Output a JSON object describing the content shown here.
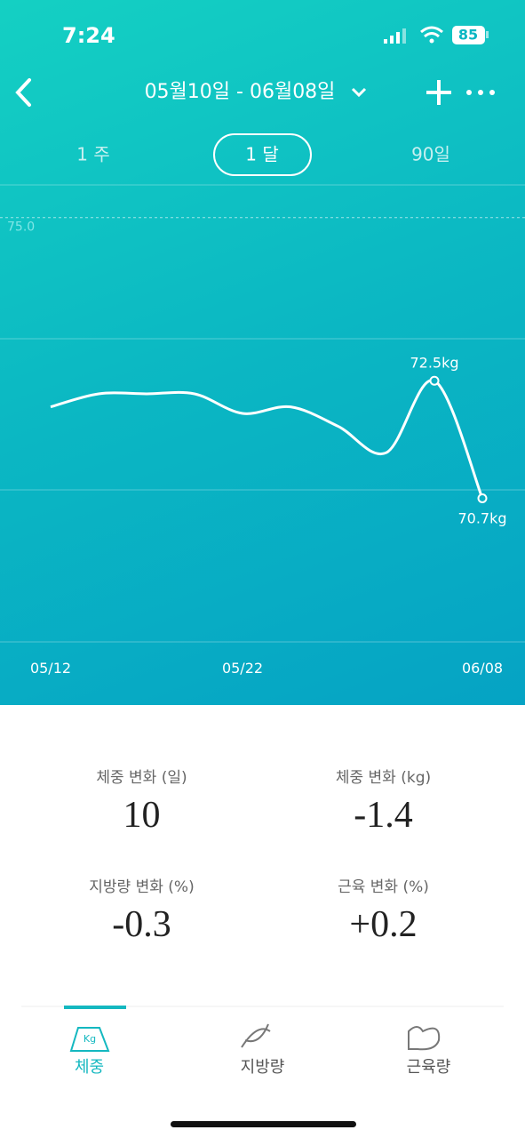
{
  "status_bar": {
    "time": "7:24",
    "battery": "85"
  },
  "header": {
    "title": "05월10일 - 06월08일"
  },
  "tabs": [
    "1 주",
    "1 달",
    "90일"
  ],
  "chart_data": {
    "type": "line",
    "categories": [
      "05/12",
      null,
      null,
      null,
      "05/22",
      null,
      null,
      null,
      null,
      "06/08"
    ],
    "series": [
      {
        "color": "#ffffff",
        "values": [
          72.1,
          72.3,
          72.3,
          72.3,
          72.0,
          72.1,
          71.8,
          71.4,
          72.5,
          70.7
        ],
        "value_labels": [
          null,
          null,
          null,
          null,
          null,
          null,
          null,
          null,
          "72.5kg",
          "70.7kg"
        ]
      }
    ],
    "ylim": [
      68.5,
      75.5
    ],
    "yticks": [
      {
        "value": 75,
        "label": "75.0"
      }
    ]
  },
  "stats": [
    {
      "label": "체중 변화 (일)",
      "value": "10"
    },
    {
      "label": "체중 변화 (kg)",
      "value": "-1.4"
    },
    {
      "label": "지방량 변화 (%)",
      "value": "-0.3"
    },
    {
      "label": "근육 변화 (%)",
      "value": "+0.2"
    }
  ],
  "nav": [
    "체중",
    "지방량",
    "근육량"
  ]
}
